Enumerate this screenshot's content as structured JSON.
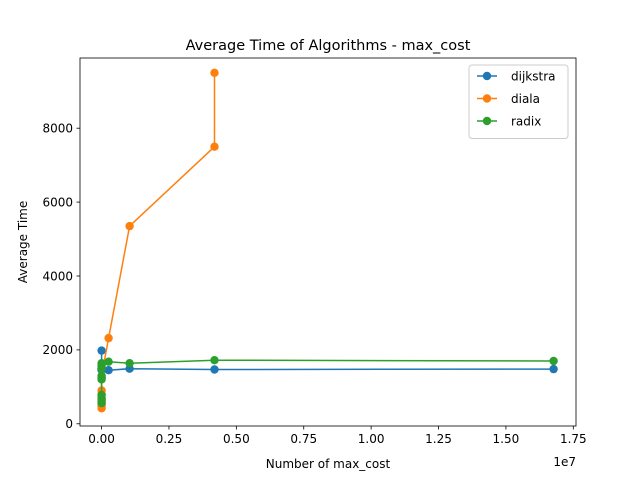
{
  "chart_data": {
    "type": "line",
    "title": "Average Time of Algorithms - max_cost",
    "xlabel": "Number of max_cost",
    "ylabel": "Average Time",
    "x_offset_label": "1e7",
    "xlim": [
      -0.08,
      1.76
    ],
    "ylim": [
      -60,
      9900
    ],
    "x_ticks": [
      0.0,
      0.25,
      0.5,
      0.75,
      1.0,
      1.25,
      1.5,
      1.75
    ],
    "x_tick_labels": [
      "0.00",
      "0.25",
      "0.50",
      "0.75",
      "1.00",
      "1.25",
      "1.50",
      "1.75"
    ],
    "y_ticks": [
      0,
      2000,
      4000,
      6000,
      8000
    ],
    "y_tick_labels": [
      "0",
      "2000",
      "4000",
      "6000",
      "8000"
    ],
    "grid": false,
    "legend_position": "top-right",
    "series": [
      {
        "name": "dijkstra",
        "color": "#1f77b4",
        "x": [
          0.0,
          0.0,
          0.0,
          0.0,
          0.0,
          0.0,
          0.0,
          0.0,
          0.0,
          0.0,
          0.0,
          0.026,
          0.104,
          0.419,
          1.677
        ],
        "y": [
          1980,
          1500,
          1240,
          1460,
          1470,
          1480,
          1490,
          1500,
          1480,
          1470,
          1460,
          1450,
          1490,
          1470,
          1480
        ]
      },
      {
        "name": "diala",
        "color": "#ff7f0e",
        "x": [
          0.0,
          0.0,
          0.0,
          0.0,
          0.0,
          0.0,
          0.0,
          0.0,
          0.0,
          0.0,
          0.0,
          0.026,
          0.104,
          0.419,
          0.419
        ],
        "y": [
          420,
          460,
          500,
          540,
          560,
          600,
          650,
          700,
          800,
          900,
          1300,
          2320,
          5350,
          7500,
          9500
        ]
      },
      {
        "name": "radix",
        "color": "#2ca02c",
        "x": [
          0.0,
          0.0,
          0.0,
          0.0,
          0.0,
          0.0,
          0.0,
          0.0,
          0.0,
          0.0,
          0.0,
          0.026,
          0.104,
          0.419,
          1.677
        ],
        "y": [
          560,
          640,
          700,
          780,
          1200,
          1250,
          1300,
          1500,
          1560,
          1600,
          1640,
          1680,
          1640,
          1720,
          1700
        ]
      }
    ]
  }
}
